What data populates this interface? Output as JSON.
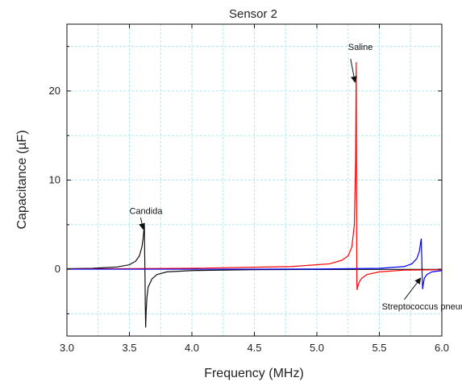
{
  "chart_data": {
    "type": "line",
    "title": "Sensor 2",
    "xlabel": "Frequency (MHz)",
    "ylabel": "Capacitance (µF)",
    "xlim": [
      3.0,
      6.0
    ],
    "ylim": [
      -7.5,
      27.5
    ],
    "x_ticks": [
      "3.0",
      "3.5",
      "4.0",
      "4.5",
      "5.0",
      "5.5",
      "6.0"
    ],
    "x_tick_values": [
      3.0,
      3.5,
      4.0,
      4.5,
      5.0,
      5.5,
      6.0
    ],
    "y_ticks": [
      "0",
      "10",
      "20"
    ],
    "y_tick_values": [
      0,
      10,
      20
    ],
    "grid": true,
    "grid_color": "#aee8f2",
    "series": [
      {
        "color": "#111111",
        "x": [
          3.0,
          3.2,
          3.4,
          3.5,
          3.55,
          3.58,
          3.6,
          3.61,
          3.615,
          3.62,
          3.622,
          3.625,
          3.627,
          3.63,
          3.635,
          3.64,
          3.65,
          3.68,
          3.72,
          3.8,
          4.0,
          4.5,
          5.0,
          5.5,
          6.0
        ],
        "y": [
          0.05,
          0.1,
          0.25,
          0.5,
          0.9,
          1.5,
          2.5,
          3.5,
          4.3,
          4.9,
          2.0,
          -1.0,
          -4.0,
          -6.5,
          -4.5,
          -3.2,
          -2.0,
          -1.1,
          -0.6,
          -0.3,
          -0.15,
          -0.05,
          -0.03,
          -0.02,
          -0.02
        ]
      },
      {
        "color": "#ff0000",
        "x": [
          3.0,
          4.0,
          4.8,
          5.1,
          5.2,
          5.25,
          5.28,
          5.3,
          5.31,
          5.315,
          5.318,
          5.32,
          5.322,
          5.325,
          5.33,
          5.34,
          5.36,
          5.4,
          5.5,
          5.7,
          6.0
        ],
        "y": [
          0.02,
          0.1,
          0.3,
          0.6,
          1.0,
          1.5,
          2.5,
          5.0,
          12.0,
          23.2,
          5.0,
          -1.5,
          -2.3,
          -2.1,
          -1.8,
          -1.4,
          -1.0,
          -0.6,
          -0.3,
          -0.1,
          -0.05
        ]
      },
      {
        "color": "#0000ff",
        "x": [
          3.0,
          4.0,
          5.0,
          5.5,
          5.7,
          5.76,
          5.8,
          5.82,
          5.83,
          5.835,
          5.84,
          5.843,
          5.846,
          5.85,
          5.86,
          5.88,
          5.92,
          6.0
        ],
        "y": [
          0.0,
          0.0,
          0.02,
          0.1,
          0.3,
          0.6,
          1.2,
          2.0,
          3.0,
          3.4,
          1.0,
          -1.0,
          -2.2,
          -1.8,
          -1.0,
          -0.6,
          -0.3,
          -0.15
        ]
      }
    ],
    "annotations": [
      {
        "text": "Candida",
        "x": 3.5,
        "y": 6.2,
        "arrow_from": [
          3.59,
          5.8
        ],
        "arrow_to": [
          3.61,
          4.5
        ]
      },
      {
        "text": "Saline",
        "x": 5.25,
        "y": 24.6,
        "arrow_from": [
          5.27,
          23.6
        ],
        "arrow_to": [
          5.305,
          21.0
        ]
      },
      {
        "text": "Streptococcus pneumoniae",
        "x": 5.52,
        "y": -4.5,
        "arrow_from": [
          5.7,
          -3.4
        ],
        "arrow_to": [
          5.83,
          -1.0
        ]
      }
    ]
  }
}
